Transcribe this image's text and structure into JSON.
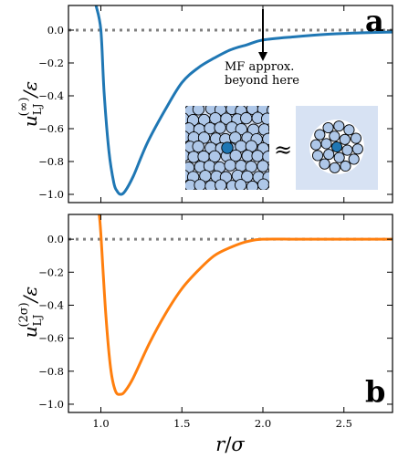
{
  "figure": {
    "approx_symbol": "≈",
    "xlabel": "r/σ",
    "xlabel_parts": {
      "var": "r",
      "div": "/",
      "unit": "σ"
    }
  },
  "chart_data": [
    {
      "type": "line",
      "panel_letter": "a",
      "ylabel": "u_LJ^(∞)/ε",
      "ylabel_parts": {
        "base": "u",
        "sub": "LJ",
        "sup": "(∞)",
        "div": "/ε"
      },
      "xlim": [
        0.8,
        2.8
      ],
      "ylim": [
        -1.05,
        0.15
      ],
      "x_ticks": [
        1.0,
        1.5,
        2.0,
        2.5
      ],
      "x_tick_labels": [
        "1.0",
        "1.5",
        "2.0",
        "2.5"
      ],
      "y_ticks": [
        0.0,
        -0.2,
        -0.4,
        -0.6,
        -0.8,
        -1.0
      ],
      "y_tick_labels": [
        "0.0",
        "−0.2",
        "−0.4",
        "−0.6",
        "−0.8",
        "−1.0"
      ],
      "show_x_tick_labels": false,
      "reference_line": {
        "y": 0.0,
        "style": "dotted",
        "color": "#808080"
      },
      "series": [
        {
          "color": "#1f77b4",
          "x": [
            0.97,
            1.0,
            1.02,
            1.05,
            1.08,
            1.1,
            1.122,
            1.15,
            1.2,
            1.25,
            1.3,
            1.4,
            1.5,
            1.6,
            1.7,
            1.8,
            1.9,
            2.0,
            2.2,
            2.4,
            2.6,
            2.8
          ],
          "y": [
            0.15,
            0.0,
            -0.38,
            -0.74,
            -0.93,
            -0.98,
            -1.0,
            -0.98,
            -0.89,
            -0.77,
            -0.66,
            -0.48,
            -0.32,
            -0.23,
            -0.17,
            -0.12,
            -0.09,
            -0.06,
            -0.04,
            -0.025,
            -0.017,
            -0.012
          ]
        }
      ],
      "annotation": {
        "lines": [
          "MF approx.",
          "beyond here"
        ],
        "arrow_from": [
          2.0,
          0.12
        ],
        "arrow_to": [
          2.0,
          -0.18
        ]
      },
      "insets": [
        {
          "kind": "dense-liquid-snapshot",
          "background": "#d7e2f3",
          "particle_fill": "#aec7e8",
          "central_fill": "#1f77b4"
        },
        {
          "kind": "neighbor-cluster-snapshot",
          "background": "#d7e2f3",
          "particle_fill": "#aec7e8",
          "central_fill": "#1f77b4"
        }
      ]
    },
    {
      "type": "line",
      "panel_letter": "b",
      "ylabel": "u_LJ^(2σ)/ε",
      "ylabel_parts": {
        "base": "u",
        "sub": "LJ",
        "sup": "(2σ)",
        "div": "/ε"
      },
      "xlim": [
        0.8,
        2.8
      ],
      "ylim": [
        -1.05,
        0.15
      ],
      "x_ticks": [
        1.0,
        1.5,
        2.0,
        2.5
      ],
      "x_tick_labels": [
        "1.0",
        "1.5",
        "2.0",
        "2.5"
      ],
      "y_ticks": [
        0.0,
        -0.2,
        -0.4,
        -0.6,
        -0.8,
        -1.0
      ],
      "y_tick_labels": [
        "0.0",
        "−0.2",
        "−0.4",
        "−0.6",
        "−0.8",
        "−1.0"
      ],
      "show_x_tick_labels": true,
      "reference_line": {
        "y": 0.0,
        "style": "dotted",
        "color": "#808080"
      },
      "series": [
        {
          "color": "#ff7f0e",
          "x": [
            0.99,
            1.0,
            1.03,
            1.06,
            1.09,
            1.122,
            1.15,
            1.2,
            1.3,
            1.4,
            1.5,
            1.6,
            1.7,
            1.8,
            1.9,
            2.0,
            2.2,
            2.4,
            2.6,
            2.8
          ],
          "y": [
            0.15,
            0.03,
            -0.45,
            -0.78,
            -0.92,
            -0.94,
            -0.92,
            -0.84,
            -0.63,
            -0.45,
            -0.3,
            -0.19,
            -0.1,
            -0.05,
            -0.015,
            0.0,
            0.0,
            0.0,
            0.0,
            0.0
          ]
        }
      ]
    }
  ]
}
